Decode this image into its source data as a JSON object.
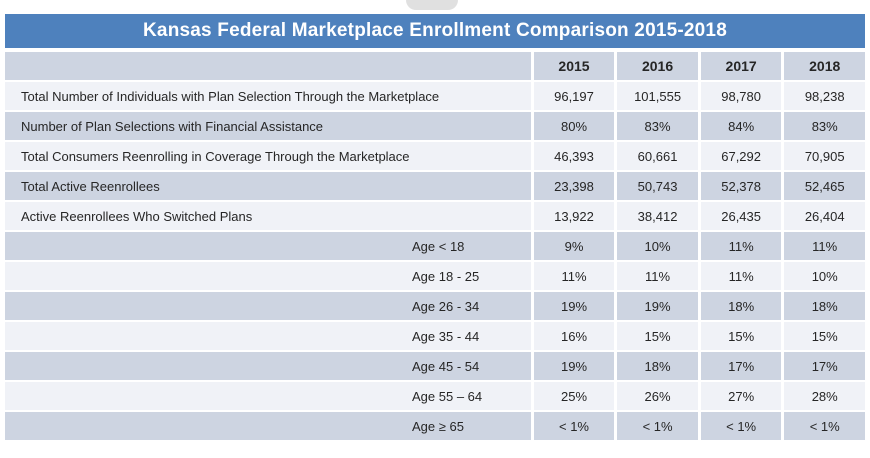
{
  "title": "Kansas Federal Marketplace Enrollment Comparison 2015-2018",
  "table": {
    "corner_label": "",
    "year_headers": [
      "2015",
      "2016",
      "2017",
      "2018"
    ],
    "rows": [
      {
        "label": "Total Number of Individuals with Plan Selection Through the Marketplace",
        "indent": false,
        "values": [
          "96,197",
          "101,555",
          "98,780",
          "98,238"
        ]
      },
      {
        "label": "Number of Plan Selections with Financial Assistance",
        "indent": false,
        "values": [
          "80%",
          "83%",
          "84%",
          "83%"
        ]
      },
      {
        "label": "Total Consumers Reenrolling in Coverage Through the Marketplace",
        "indent": false,
        "values": [
          "46,393",
          "60,661",
          "67,292",
          "70,905"
        ]
      },
      {
        "label": "Total Active Reenrollees",
        "indent": false,
        "values": [
          "23,398",
          "50,743",
          "52,378",
          "52,465"
        ]
      },
      {
        "label": "Active Reenrollees Who Switched Plans",
        "indent": false,
        "values": [
          "13,922",
          "38,412",
          "26,435",
          "26,404"
        ]
      },
      {
        "label": "Age < 18",
        "indent": true,
        "values": [
          "9%",
          "10%",
          "11%",
          "11%"
        ]
      },
      {
        "label": "Age 18 - 25",
        "indent": true,
        "values": [
          "11%",
          "11%",
          "11%",
          "10%"
        ]
      },
      {
        "label": "Age 26 - 34",
        "indent": true,
        "values": [
          "19%",
          "19%",
          "18%",
          "18%"
        ]
      },
      {
        "label": "Age 35 - 44",
        "indent": true,
        "values": [
          "16%",
          "15%",
          "15%",
          "15%"
        ]
      },
      {
        "label": "Age 45 - 54",
        "indent": true,
        "values": [
          "19%",
          "18%",
          "17%",
          "17%"
        ]
      },
      {
        "label": "Age 55 – 64",
        "indent": true,
        "values": [
          "25%",
          "26%",
          "27%",
          "28%"
        ]
      },
      {
        "label": "Age ≥ 65",
        "indent": true,
        "values": [
          "< 1%",
          "< 1%",
          "< 1%",
          "< 1%"
        ]
      }
    ]
  },
  "colors": {
    "title_bar_bg": "#4E81BD",
    "title_text": "#FFFFFF",
    "row_band_bg": "#CDD4E1",
    "row_light_bg": "#F0F2F7",
    "text": "#262626",
    "gridline": "#FFFFFF"
  },
  "chart_data": {
    "type": "table",
    "title": "Kansas Federal Marketplace Enrollment Comparison 2015-2018",
    "columns": [
      "",
      "2015",
      "2016",
      "2017",
      "2018"
    ],
    "rows": [
      [
        "Total Number of Individuals with Plan Selection Through the Marketplace",
        "96,197",
        "101,555",
        "98,780",
        "98,238"
      ],
      [
        "Number of Plan Selections with Financial Assistance",
        "80%",
        "83%",
        "84%",
        "83%"
      ],
      [
        "Total Consumers Reenrolling in Coverage Through the Marketplace",
        "46,393",
        "60,661",
        "67,292",
        "70,905"
      ],
      [
        "Total Active Reenrollees",
        "23,398",
        "50,743",
        "52,378",
        "52,465"
      ],
      [
        "Active Reenrollees Who Switched Plans",
        "13,922",
        "38,412",
        "26,435",
        "26,404"
      ],
      [
        "Age < 18",
        "9%",
        "10%",
        "11%",
        "11%"
      ],
      [
        "Age 18 - 25",
        "11%",
        "11%",
        "11%",
        "10%"
      ],
      [
        "Age 26 - 34",
        "19%",
        "19%",
        "18%",
        "18%"
      ],
      [
        "Age 35 - 44",
        "16%",
        "15%",
        "15%",
        "15%"
      ],
      [
        "Age 45 - 54",
        "19%",
        "18%",
        "17%",
        "17%"
      ],
      [
        "Age 55 – 64",
        "25%",
        "26%",
        "27%",
        "28%"
      ],
      [
        "Age ≥ 65",
        "< 1%",
        "< 1%",
        "< 1%",
        "< 1%"
      ]
    ],
    "layout_hints": {
      "banded_rows": true,
      "header_fill": "#CDD4E1",
      "title_fill": "#4E81BD",
      "value_columns_start_x": "61% of width"
    }
  }
}
